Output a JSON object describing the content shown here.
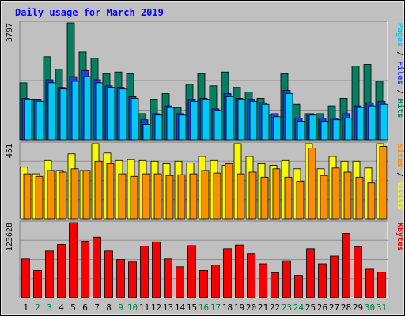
{
  "chart_data": {
    "type": "bar",
    "title": "Daily usage for March 2019",
    "categories": [
      "1",
      "2",
      "3",
      "4",
      "5",
      "6",
      "7",
      "8",
      "9",
      "10",
      "11",
      "12",
      "13",
      "14",
      "15",
      "16",
      "17",
      "18",
      "19",
      "20",
      "21",
      "22",
      "23",
      "24",
      "25",
      "26",
      "27",
      "28",
      "29",
      "30",
      "31"
    ],
    "weekend_days": [
      "2",
      "3",
      "9",
      "10",
      "16",
      "17",
      "23",
      "24",
      "30",
      "31"
    ],
    "panels": [
      {
        "name": "top",
        "max_label": "3797",
        "ymax": 3797,
        "series": [
          {
            "name": "Hits",
            "color": "#008060",
            "values": [
              1850,
              1300,
              2700,
              2300,
              3797,
              2850,
              2650,
              2150,
              2200,
              2150,
              850,
              1300,
              1500,
              1050,
              1800,
              2150,
              1750,
              2200,
              1700,
              1550,
              1350,
              800,
              2150,
              1150,
              850,
              850,
              1100,
              1350,
              2400,
              2450,
              1900
            ]
          },
          {
            "name": "Files",
            "color": "#2040e0",
            "values": [
              1350,
              1300,
              1950,
              1700,
              2050,
              2250,
              1950,
              1750,
              1700,
              1400,
              650,
              850,
              1100,
              850,
              1300,
              1350,
              1000,
              1500,
              1350,
              1300,
              1200,
              850,
              1600,
              700,
              850,
              700,
              700,
              850,
              1100,
              1200,
              1250
            ]
          },
          {
            "name": "Pages",
            "color": "#00c8f8",
            "values": [
              1300,
              1250,
              1850,
              1650,
              1900,
              2050,
              1850,
              1700,
              1650,
              1350,
              500,
              800,
              1050,
              800,
              1250,
              1300,
              950,
              1400,
              1300,
              1250,
              1150,
              750,
              1500,
              600,
              800,
              600,
              650,
              700,
              1050,
              1100,
              1150
            ]
          }
        ],
        "legend": [
          {
            "text": "Pages",
            "color": "#00c8f8"
          },
          {
            "text": " / ",
            "color": "#000000"
          },
          {
            "text": "Files",
            "color": "#2040e0"
          },
          {
            "text": " / ",
            "color": "#000000"
          },
          {
            "text": "Hits",
            "color": "#008060"
          }
        ]
      },
      {
        "name": "middle",
        "max_label": "451",
        "ymax": 451,
        "series": [
          {
            "name": "Visits",
            "color": "#f8f800",
            "values": [
              310,
              270,
              350,
              290,
              390,
              290,
              451,
              395,
              350,
              355,
              350,
              345,
              330,
              345,
              335,
              375,
              350,
              320,
              451,
              375,
              330,
              320,
              350,
              300,
              451,
              300,
              375,
              345,
              345,
              305,
              451
            ]
          },
          {
            "name": "Sites",
            "color": "#f89000",
            "values": [
              270,
              255,
              290,
              280,
              300,
              290,
              345,
              330,
              270,
              255,
              270,
              270,
              260,
              265,
              270,
              290,
              275,
              330,
              270,
              280,
              250,
              300,
              250,
              225,
              425,
              260,
              305,
              280,
              250,
              215,
              435
            ]
          }
        ],
        "legend": [
          {
            "text": "Sites",
            "color": "#f89000"
          },
          {
            "text": " / ",
            "color": "#000000"
          },
          {
            "text": "Visits",
            "color": "#f8f800"
          }
        ]
      },
      {
        "name": "bottom",
        "max_label": "123628",
        "ymax": 123628,
        "series": [
          {
            "name": "KBytes",
            "color": "#f80000",
            "values": [
              64000,
              45000,
              77000,
              88000,
              123628,
              93000,
              100000,
              77000,
              63000,
              59000,
              85000,
              92000,
              64000,
              51000,
              86000,
              45000,
              54000,
              81000,
              87000,
              72000,
              56000,
              41000,
              61000,
              37000,
              81000,
              56000,
              69000,
              106000,
              84000,
              47000,
              42000
            ]
          }
        ],
        "legend": [
          {
            "text": "KBytes",
            "color": "#f80000"
          }
        ]
      }
    ],
    "colors": {
      "background": "#c0c0c0",
      "plot_background": "#c0c0c0",
      "title": "#0000ff",
      "weekday_label": "#000000",
      "weekend_label": "#008040",
      "grid": "#909090"
    }
  }
}
